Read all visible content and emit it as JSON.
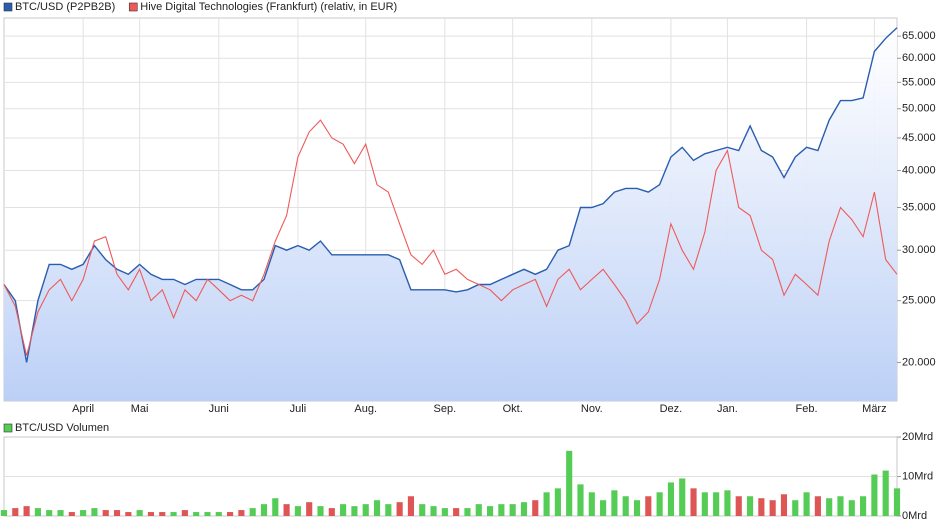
{
  "chart_data": [
    {
      "type": "line",
      "log_scale": true,
      "grid": true,
      "area_fill": "#bcd0f6",
      "categories": [
        null,
        null,
        null,
        null,
        null,
        null,
        null,
        "April",
        null,
        null,
        null,
        null,
        "Mai",
        null,
        null,
        null,
        null,
        null,
        null,
        "Juni",
        null,
        null,
        null,
        null,
        null,
        null,
        "Juli",
        null,
        null,
        null,
        null,
        null,
        "Aug.",
        null,
        null,
        null,
        null,
        null,
        null,
        "Sep.",
        null,
        null,
        null,
        null,
        null,
        "Okt.",
        null,
        null,
        null,
        null,
        null,
        null,
        "Nov.",
        null,
        null,
        null,
        null,
        null,
        null,
        "Dez.",
        null,
        null,
        null,
        null,
        "Jan.",
        null,
        null,
        null,
        null,
        null,
        null,
        "Feb.",
        null,
        null,
        null,
        null,
        null,
        "März",
        null,
        null
      ],
      "series": [
        {
          "name": "BTC/USD (P2PB2B)",
          "color": "#2a5db0",
          "values": [
            26500,
            25000,
            20000,
            25000,
            28500,
            28500,
            28000,
            28500,
            30500,
            29000,
            28000,
            27500,
            28500,
            27500,
            27000,
            27000,
            26500,
            27000,
            27000,
            27000,
            26500,
            26000,
            26000,
            27000,
            30500,
            30000,
            30500,
            30000,
            31000,
            29500,
            29500,
            29500,
            29500,
            29500,
            29500,
            29000,
            26000,
            26000,
            26000,
            26000,
            25800,
            26000,
            26500,
            26500,
            27000,
            27500,
            28000,
            27500,
            28000,
            30000,
            30500,
            35000,
            35000,
            35500,
            37000,
            37500,
            37500,
            37000,
            38000,
            42000,
            43500,
            41500,
            42500,
            43000,
            43500,
            43000,
            47000,
            43000,
            42000,
            39000,
            42000,
            43500,
            43000,
            48000,
            51500,
            51500,
            52000,
            61500,
            64500,
            67000
          ]
        },
        {
          "name": "Hive Digital Technologies (Frankfurt) (relativ, in EUR)",
          "color": "#ee5a5a",
          "values": [
            26500,
            24500,
            20500,
            24000,
            26000,
            27000,
            25000,
            27000,
            31000,
            31500,
            27500,
            26000,
            28000,
            25000,
            26000,
            23500,
            26000,
            25000,
            27000,
            26000,
            25000,
            25500,
            25000,
            27500,
            31000,
            34000,
            42000,
            46000,
            48000,
            45000,
            44000,
            41000,
            44000,
            38000,
            37000,
            33000,
            29500,
            28500,
            30000,
            27500,
            28000,
            27000,
            26500,
            26000,
            25000,
            26000,
            26500,
            27000,
            24500,
            27000,
            28000,
            26000,
            27000,
            28000,
            26500,
            25000,
            23000,
            24000,
            27000,
            33000,
            30000,
            28000,
            32000,
            40000,
            43000,
            35000,
            34000,
            30000,
            29000,
            25500,
            27500,
            26500,
            25500,
            31000,
            35000,
            33500,
            31500,
            37000,
            29000,
            27500
          ]
        }
      ],
      "ylim": [
        17400,
        69400
      ],
      "yticks": [
        {
          "value": 20000,
          "label": "20.000"
        },
        {
          "value": 25000,
          "label": "25.000"
        },
        {
          "value": 30000,
          "label": "30.000"
        },
        {
          "value": 35000,
          "label": "35.000"
        },
        {
          "value": 40000,
          "label": "40.000"
        },
        {
          "value": 45000,
          "label": "45.000"
        },
        {
          "value": 50000,
          "label": "50.000"
        },
        {
          "value": 55000,
          "label": "55.000"
        },
        {
          "value": 60000,
          "label": "60.000"
        },
        {
          "value": 65000,
          "label": "65.000"
        }
      ]
    },
    {
      "type": "bar",
      "up_color": "#55cc55",
      "down_color": "#dd5555",
      "series": [
        {
          "name": "BTC/USD Volumen",
          "color": "#55cc55",
          "values": [
            1.5,
            2,
            2.5,
            2,
            1.5,
            1.5,
            1,
            1.5,
            2,
            1.5,
            1.5,
            1,
            1.5,
            1,
            1,
            1,
            1.5,
            1,
            1,
            1,
            1,
            1.5,
            2,
            3,
            4.5,
            3,
            2.5,
            3.5,
            2.5,
            2,
            3,
            2.5,
            3,
            4,
            3,
            3.5,
            5,
            3,
            2.5,
            2,
            2,
            2,
            3,
            2.5,
            3,
            3,
            3.5,
            4,
            6,
            7,
            16.5,
            8,
            6,
            4,
            6.5,
            5,
            4,
            5,
            6,
            8.5,
            9.5,
            7,
            6,
            6,
            6.5,
            5,
            5,
            4.5,
            4,
            5.5,
            4,
            6,
            5,
            4.5,
            5,
            4,
            5,
            10.5,
            11.5,
            7
          ]
        }
      ],
      "ylim": [
        0,
        20
      ],
      "yticks": [
        {
          "value": 0,
          "label": "0Mrd"
        },
        {
          "value": 10,
          "label": "10Mrd"
        },
        {
          "value": 20,
          "label": "20Mrd"
        }
      ]
    }
  ]
}
